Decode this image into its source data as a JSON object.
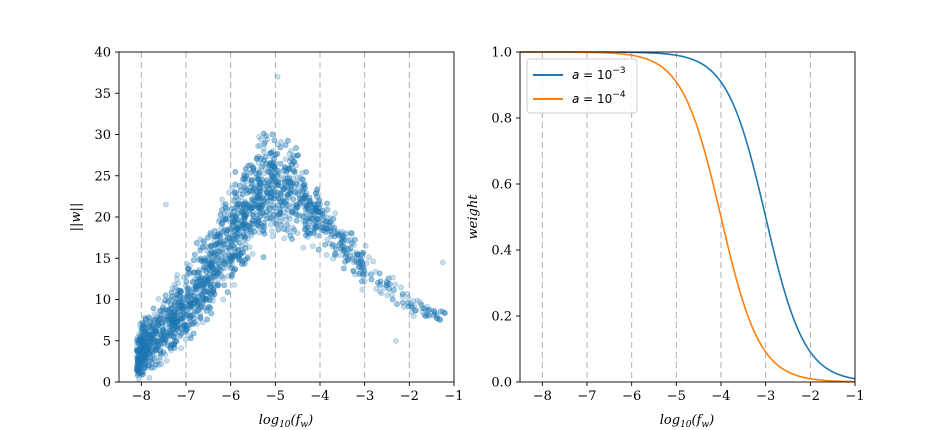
{
  "chart_data": [
    {
      "type": "scatter",
      "xlabel": "log10(fw)",
      "ylabel": "||w||",
      "xlim": [
        -8.5,
        -1
      ],
      "ylim": [
        0,
        40
      ],
      "xticks": [
        -8,
        -7,
        -6,
        -5,
        -4,
        -3,
        -2,
        -1
      ],
      "yticks": [
        0,
        5,
        10,
        15,
        20,
        25,
        30,
        35,
        40
      ],
      "grid": "vertical dashed at integer x",
      "marker_color": "#1f77b4",
      "marker_alpha": 0.25,
      "envelope": {
        "x": [
          -8.1,
          -8.0,
          -7.5,
          -7.0,
          -6.5,
          -6.0,
          -5.5,
          -5.0,
          -4.5,
          -4.0,
          -3.5,
          -3.0,
          -2.5,
          -2.0,
          -1.5,
          -1.2
        ],
        "lower": [
          0.0,
          0.0,
          1.0,
          3.5,
          7.0,
          10.5,
          14.0,
          17.0,
          16.5,
          15.5,
          13.5,
          11.0,
          9.0,
          7.5,
          7.0,
          7.0
        ],
        "upper": [
          6.0,
          8.0,
          11.0,
          14.5,
          19.0,
          25.0,
          30.0,
          31.0,
          28.0,
          24.0,
          20.0,
          17.0,
          14.0,
          11.0,
          9.5,
          9.0
        ]
      },
      "outliers": [
        {
          "x": -4.95,
          "y": 37.0
        },
        {
          "x": -7.45,
          "y": 21.5
        },
        {
          "x": -1.25,
          "y": 14.5
        },
        {
          "x": -1.7,
          "y": 8.5
        },
        {
          "x": -1.9,
          "y": 8.0
        },
        {
          "x": -2.3,
          "y": 5.0
        },
        {
          "x": -7.2,
          "y": 13.0
        },
        {
          "x": -8.05,
          "y": 0.3
        }
      ]
    },
    {
      "type": "line",
      "xlabel": "log10(fw)",
      "ylabel": "weight",
      "xlim": [
        -8.5,
        -1
      ],
      "ylim": [
        0.0,
        1.0
      ],
      "xticks": [
        -8,
        -7,
        -6,
        -5,
        -4,
        -3,
        -2,
        -1
      ],
      "yticks": [
        0.0,
        0.2,
        0.4,
        0.6,
        0.8,
        1.0
      ],
      "grid": "vertical dashed at integer x",
      "legend_position": "top-left",
      "series": [
        {
          "name": "a = 10^-3",
          "a_exponent": -3,
          "color": "#1f77b4",
          "x": [
            -8.5,
            -7.0,
            -6.0,
            -5.5,
            -5.0,
            -4.5,
            -4.0,
            -3.5,
            -3.0,
            -2.5,
            -2.0,
            -1.5,
            -1.0
          ],
          "y": [
            1.0,
            1.0,
            0.999,
            0.997,
            0.99,
            0.97,
            0.91,
            0.76,
            0.5,
            0.24,
            0.09,
            0.03,
            0.01
          ]
        },
        {
          "name": "a = 10^-4",
          "a_exponent": -4,
          "color": "#ff7f0e",
          "x": [
            -8.5,
            -7.0,
            -6.5,
            -6.0,
            -5.5,
            -5.0,
            -4.5,
            -4.0,
            -3.5,
            -3.0,
            -2.5,
            -2.0,
            -1.0
          ],
          "y": [
            1.0,
            0.999,
            0.997,
            0.99,
            0.97,
            0.91,
            0.76,
            0.5,
            0.24,
            0.09,
            0.03,
            0.01,
            0.001
          ]
        }
      ]
    }
  ],
  "labels": {
    "left_xlabel_base": "log",
    "left_xlabel_sub": "10",
    "left_xlabel_arg": "(f",
    "left_xlabel_argsub": "w",
    "left_xlabel_close": ")",
    "left_ylabel": "||w||",
    "right_xlabel_base": "log",
    "right_xlabel_sub": "10",
    "right_xlabel_arg": "(f",
    "right_xlabel_argsub": "w",
    "right_xlabel_close": ")",
    "right_ylabel": "weight",
    "legend1_prefix": "a",
    "legend1_eq": " = 10",
    "legend1_exp": "−3",
    "legend2_prefix": "a",
    "legend2_eq": " = 10",
    "legend2_exp": "−4"
  }
}
